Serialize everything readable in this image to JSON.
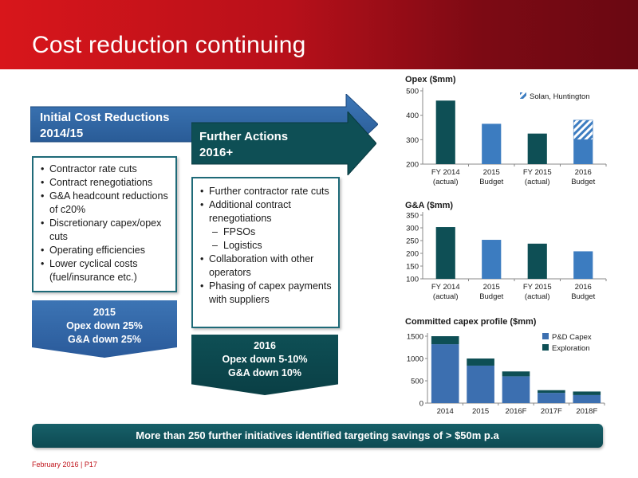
{
  "header": {
    "title": "Cost reduction continuing"
  },
  "arrow1": {
    "line1": "Initial Cost Reductions",
    "line2": "2014/15"
  },
  "arrow2": {
    "line1": "Further Actions",
    "line2": "2016+"
  },
  "box1": {
    "items": [
      "Contractor rate cuts",
      "Contract renegotiations",
      "G&A headcount reductions of c20%",
      "Discretionary capex/opex cuts",
      "Operating efficiencies",
      "Lower cyclical costs (fuel/insurance etc.)"
    ]
  },
  "box2": {
    "items": [
      "Further contractor rate cuts",
      "Additional contract renegotiations",
      "FPSOs",
      "Logistics",
      "Collaboration with other operators",
      "Phasing of capex payments with suppliers"
    ]
  },
  "summary1": {
    "line1": "2015",
    "line2": "Opex down 25%",
    "line3": "G&A down 25%"
  },
  "summary2": {
    "line1": "2016",
    "line2": "Opex  down 5-10%",
    "line3": "G&A down 10%"
  },
  "banner": {
    "text": "More than 250 further initiatives identified targeting savings of > $50m p.a"
  },
  "footer": {
    "text": "February 2016 | P17"
  },
  "colors": {
    "dark_teal": "#0e4f55",
    "mid_blue": "#3c7cc0",
    "red": "#c0141b"
  },
  "chart_data": [
    {
      "type": "bar",
      "title": "Opex ($mm)",
      "categories": [
        "FY 2014\n(actual)",
        "2015\nBudget",
        "FY 2015\n(actual)",
        "2016\nBudget"
      ],
      "values": [
        460,
        365,
        325,
        300
      ],
      "extra": {
        "name": "Solan, Huntington",
        "category_index": 3,
        "value": 80
      },
      "ylim": [
        200,
        500
      ],
      "yticks": [
        200,
        300,
        400,
        500
      ],
      "bar_colors": [
        "#0e4f55",
        "#3c7cc0",
        "#0e4f55",
        "#3c7cc0"
      ]
    },
    {
      "type": "bar",
      "title": "G&A ($mm)",
      "categories": [
        "FY 2014\n(actual)",
        "2015\nBudget",
        "FY 2015\n(actual)",
        "2016\nBudget"
      ],
      "values": [
        303,
        253,
        238,
        208
      ],
      "ylim": [
        100,
        350
      ],
      "yticks": [
        100,
        150,
        200,
        250,
        300,
        350
      ],
      "bar_colors": [
        "#0e4f55",
        "#3c7cc0",
        "#0e4f55",
        "#3c7cc0"
      ]
    },
    {
      "type": "bar",
      "title": "Committed capex profile ($mm)",
      "categories": [
        "2014",
        "2015",
        "2016F",
        "2017F",
        "2018F"
      ],
      "series": [
        {
          "name": "P&D Capex",
          "values": [
            1320,
            840,
            600,
            230,
            180
          ]
        },
        {
          "name": "Exploration",
          "values": [
            180,
            160,
            110,
            60,
            80
          ]
        }
      ],
      "ylim": [
        0,
        1500
      ],
      "yticks": [
        0,
        500,
        1000,
        1500
      ],
      "stacked": true
    }
  ]
}
